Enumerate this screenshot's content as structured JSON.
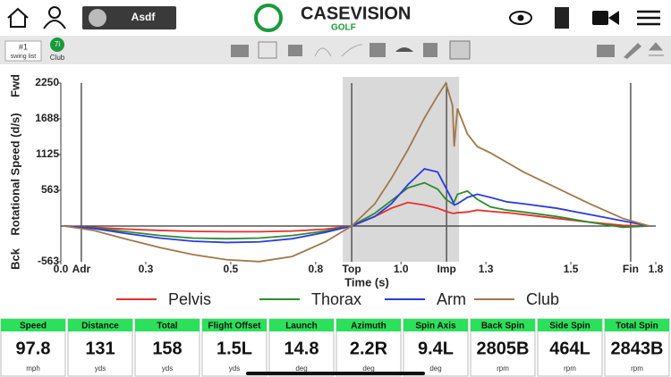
{
  "header": {
    "profile_name": "Asdf",
    "logo_main": "CASEVISION",
    "logo_sub": "GOLF",
    "swing_number": "#1",
    "swing_list": "swing list",
    "club_badge": "7i",
    "club_label": "Club"
  },
  "chart_data": {
    "type": "line",
    "y_label": "Rotational Speed (d/s)",
    "x_label": "Time (s)",
    "y_top_label": "Fwd",
    "y_bottom_label": "Bck",
    "x": [
      0.01,
      0.1,
      0.2,
      0.3,
      0.4,
      0.5,
      0.6,
      0.7,
      0.8,
      0.88,
      0.95,
      1.0,
      1.05,
      1.1,
      1.14,
      1.165,
      1.185,
      1.19,
      1.2,
      1.23,
      1.26,
      1.3,
      1.35,
      1.4,
      1.5,
      1.6,
      1.7,
      1.78
    ],
    "series": [
      {
        "name": "Pelvis",
        "color": "#e8302c",
        "values": [
          0,
          -20,
          -50,
          -70,
          -85,
          -90,
          -90,
          -80,
          -50,
          0,
          150,
          280,
          370,
          330,
          280,
          230,
          200,
          200,
          210,
          220,
          250,
          230,
          210,
          180,
          120,
          60,
          10,
          0
        ]
      },
      {
        "name": "Thorax",
        "color": "#2e8b2e",
        "values": [
          0,
          -30,
          -90,
          -150,
          -190,
          -200,
          -190,
          -150,
          -80,
          0,
          200,
          400,
          600,
          680,
          580,
          420,
          350,
          380,
          500,
          550,
          420,
          300,
          250,
          220,
          150,
          60,
          -20,
          0
        ]
      },
      {
        "name": "Arm",
        "color": "#2b3be0",
        "values": [
          0,
          -40,
          -120,
          -190,
          -240,
          -260,
          -250,
          -200,
          -100,
          0,
          150,
          350,
          650,
          900,
          850,
          600,
          400,
          330,
          350,
          450,
          500,
          450,
          380,
          350,
          280,
          180,
          80,
          0
        ]
      },
      {
        "name": "Club",
        "color": "#a0784a",
        "values": [
          0,
          -70,
          -210,
          -340,
          -450,
          -530,
          -560,
          -480,
          -250,
          0,
          350,
          750,
          1200,
          1700,
          2050,
          2250,
          1900,
          1250,
          1850,
          1450,
          1250,
          1150,
          1000,
          850,
          600,
          350,
          120,
          0
        ]
      }
    ],
    "xlim": [
      0,
      1.8
    ],
    "ylim": [
      -563,
      2250
    ],
    "xticks": [
      {
        "value": 0,
        "label": "0.0"
      },
      {
        "value": 0.257,
        "label": "0.3"
      },
      {
        "value": 0.514,
        "label": "0.5"
      },
      {
        "value": 0.771,
        "label": "0.8"
      },
      {
        "value": 1.029,
        "label": "1.0"
      },
      {
        "value": 1.286,
        "label": "1.3"
      },
      {
        "value": 1.543,
        "label": "1.5"
      },
      {
        "value": 1.8,
        "label": "1.8"
      }
    ],
    "yticks": [
      -563,
      563,
      1125,
      1688,
      2250
    ],
    "phases": [
      {
        "label": "Adr",
        "x": 0.062
      },
      {
        "label": "Top",
        "x": 0.88
      },
      {
        "label": "Imp",
        "x": 1.167
      },
      {
        "label": "Fin",
        "x": 1.724
      }
    ],
    "highlight": [
      0.853,
      1.205
    ]
  },
  "stats": [
    {
      "label": "Speed",
      "value": "97.8",
      "unit": "mph"
    },
    {
      "label": "Distance",
      "value": "131",
      "unit": "yds"
    },
    {
      "label": "Total",
      "value": "158",
      "unit": "yds"
    },
    {
      "label": "Flight Offset",
      "value": "1.5L",
      "unit": "yds"
    },
    {
      "label": "Launch",
      "value": "14.8",
      "unit": "deg"
    },
    {
      "label": "Azimuth",
      "value": "2.2R",
      "unit": "deg"
    },
    {
      "label": "Spin Axis",
      "value": "9.4L",
      "unit": "deg"
    },
    {
      "label": "Back Spin",
      "value": "2805B",
      "unit": "rpm"
    },
    {
      "label": "Side Spin",
      "value": "464L",
      "unit": "rpm"
    },
    {
      "label": "Total Spin",
      "value": "2843B",
      "unit": "rpm"
    }
  ]
}
